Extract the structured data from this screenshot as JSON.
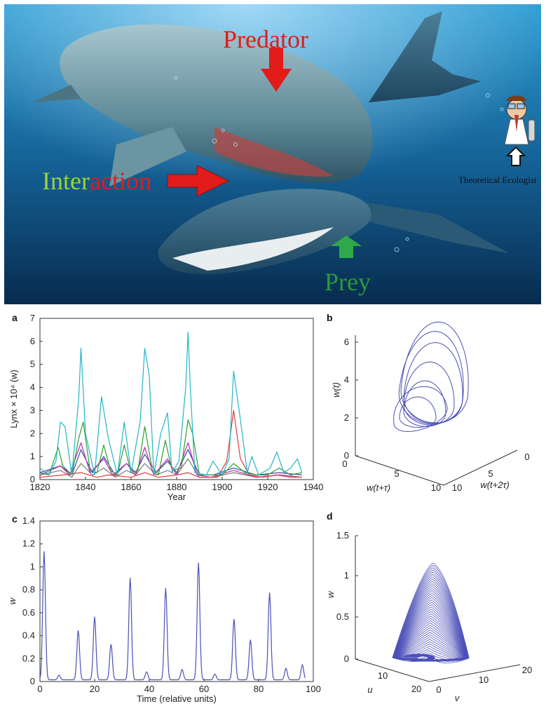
{
  "hero": {
    "label_predator": "Predator",
    "label_interaction_part1": "Inter",
    "label_interaction_part2": "action",
    "label_prey": "Prey",
    "label_theoretical_ecologist": "Theoretical Ecologist",
    "colors": {
      "water_top": "#1f8fc8",
      "water_bottom": "#0a3a66",
      "arrow_red": "#e21b1b",
      "arrow_green": "#2fa84a",
      "label_green": "#9ad33a"
    }
  },
  "chart_data": [
    {
      "panel": "a",
      "type": "line",
      "xlabel": "Year",
      "ylabel": "Lynx × 10⁴ (w)",
      "xlim": [
        1820,
        1940
      ],
      "ylim": [
        0,
        7
      ],
      "xticks": [
        1820,
        1840,
        1860,
        1880,
        1900,
        1920,
        1940
      ],
      "yticks": [
        0,
        1,
        2,
        3,
        4,
        5,
        6,
        7
      ],
      "series": [
        {
          "color": "#22b5c9",
          "x": [
            1820,
            1824,
            1827,
            1829,
            1831,
            1834,
            1837,
            1838,
            1840,
            1844,
            1847,
            1850,
            1854,
            1857,
            1860,
            1864,
            1866,
            1868,
            1870,
            1873,
            1876,
            1878,
            1881,
            1884,
            1885,
            1886,
            1888,
            1893,
            1896,
            1900,
            1903,
            1905,
            1908,
            1911,
            1913,
            1916,
            1921,
            1924,
            1927,
            1930,
            1933,
            1935
          ],
          "y": [
            0.5,
            0.2,
            0.8,
            2.5,
            2.3,
            0.2,
            3.5,
            5.7,
            2.0,
            0.2,
            3.6,
            1.8,
            0.2,
            2.5,
            0.3,
            2.5,
            5.7,
            4.5,
            0.2,
            2.0,
            2.9,
            0.3,
            0.8,
            4.0,
            6.4,
            4.0,
            0.3,
            0.2,
            0.8,
            0.2,
            0.9,
            4.7,
            2.6,
            0.3,
            1.0,
            0.2,
            0.5,
            1.2,
            0.3,
            0.5,
            0.9,
            0.3
          ]
        },
        {
          "color": "#2ca02c",
          "x": [
            1820,
            1824,
            1828,
            1830,
            1834,
            1837,
            1839,
            1842,
            1845,
            1848,
            1851,
            1854,
            1857,
            1860,
            1863,
            1866,
            1869,
            1872,
            1875,
            1878,
            1882,
            1885,
            1887,
            1890,
            1895,
            1900,
            1905,
            1910,
            1915,
            1920,
            1925,
            1930,
            1935
          ],
          "y": [
            0.3,
            0.2,
            1.4,
            0.6,
            0.2,
            1.8,
            2.5,
            0.4,
            0.3,
            1.5,
            0.4,
            0.2,
            1.5,
            0.3,
            0.4,
            2.3,
            0.6,
            0.2,
            1.7,
            0.4,
            0.5,
            2.6,
            2.0,
            0.2,
            0.2,
            0.2,
            0.7,
            0.3,
            0.2,
            0.2,
            0.5,
            0.2,
            0.3
          ]
        },
        {
          "color": "#e03a3a",
          "x": [
            1820,
            1830,
            1838,
            1845,
            1850,
            1860,
            1866,
            1872,
            1880,
            1885,
            1890,
            1898,
            1902,
            1905,
            1908,
            1912,
            1918,
            1924,
            1930,
            1935
          ],
          "y": [
            0.1,
            0.2,
            0.3,
            0.1,
            0.2,
            0.1,
            0.3,
            0.1,
            0.2,
            0.3,
            0.1,
            0.1,
            0.8,
            3.0,
            0.9,
            0.2,
            0.1,
            0.2,
            0.1,
            0.1
          ]
        },
        {
          "color": "#c02bb0",
          "x": [
            1820,
            1829,
            1833,
            1838,
            1842,
            1848,
            1852,
            1858,
            1862,
            1866,
            1870,
            1876,
            1880,
            1885,
            1889,
            1895,
            1905,
            1915,
            1925,
            1935
          ],
          "y": [
            0.2,
            0.6,
            0.2,
            1.6,
            0.3,
            0.9,
            0.2,
            0.7,
            0.2,
            1.4,
            0.2,
            0.9,
            0.2,
            1.6,
            0.2,
            0.1,
            0.4,
            0.1,
            0.2,
            0.1
          ]
        },
        {
          "color": "#3b4aa5",
          "x": [
            1820,
            1829,
            1834,
            1838,
            1843,
            1848,
            1853,
            1858,
            1862,
            1866,
            1871,
            1876,
            1880,
            1885,
            1890,
            1896,
            1905,
            1915,
            1925,
            1935
          ],
          "y": [
            0.3,
            0.6,
            0.2,
            1.3,
            0.3,
            1.0,
            0.2,
            0.7,
            0.3,
            1.1,
            0.3,
            0.8,
            0.3,
            1.3,
            0.2,
            0.2,
            0.5,
            0.2,
            0.3,
            0.2
          ]
        },
        {
          "color": "#7a7a7a",
          "x": [
            1820,
            1829,
            1834,
            1838,
            1843,
            1848,
            1853,
            1858,
            1862,
            1866,
            1871,
            1876,
            1880,
            1885,
            1890,
            1896,
            1905,
            1915,
            1925,
            1935
          ],
          "y": [
            0.2,
            0.4,
            0.1,
            0.7,
            0.2,
            0.5,
            0.1,
            0.4,
            0.2,
            0.7,
            0.2,
            0.4,
            0.2,
            0.9,
            0.1,
            0.1,
            0.3,
            0.1,
            0.2,
            0.1
          ]
        }
      ]
    },
    {
      "panel": "b",
      "type": "line",
      "xlabel": "w(t+τ)",
      "ylabel": "w(t)",
      "zlabel": "w(t+2τ)",
      "xticks": [
        0,
        5,
        10
      ],
      "yticks": [
        0,
        2,
        4,
        6
      ],
      "zticks": [
        0,
        5,
        10
      ],
      "color": "#4b50b8"
    },
    {
      "panel": "c",
      "type": "line",
      "xlabel": "Time (relative units)",
      "ylabel": "w",
      "xlim": [
        0,
        100
      ],
      "ylim": [
        0,
        1.4
      ],
      "xticks": [
        0,
        20,
        40,
        60,
        80,
        100
      ],
      "yticks": [
        0,
        0.2,
        0.4,
        0.6,
        0.8,
        1,
        1.2,
        1.4
      ],
      "color": "#4b50b8",
      "peaks": [
        {
          "t": 1.5,
          "w": 1.12
        },
        {
          "t": 7,
          "w": 0.04
        },
        {
          "t": 14,
          "w": 0.43
        },
        {
          "t": 20,
          "w": 0.55
        },
        {
          "t": 26,
          "w": 0.31
        },
        {
          "t": 33,
          "w": 0.89
        },
        {
          "t": 39,
          "w": 0.07
        },
        {
          "t": 46,
          "w": 0.8
        },
        {
          "t": 52,
          "w": 0.09
        },
        {
          "t": 58,
          "w": 1.02
        },
        {
          "t": 64,
          "w": 0.05
        },
        {
          "t": 71,
          "w": 0.53
        },
        {
          "t": 77,
          "w": 0.35
        },
        {
          "t": 84,
          "w": 0.76
        },
        {
          "t": 90,
          "w": 0.1
        },
        {
          "t": 96,
          "w": 0.13
        }
      ]
    },
    {
      "panel": "d",
      "type": "line",
      "xlabel": "u",
      "ylabel": "w",
      "zlabel": "v",
      "xticks": [
        20,
        10
      ],
      "yticks": [
        0,
        0.5,
        1,
        1.5
      ],
      "zticks": [
        0,
        10,
        20
      ],
      "color": "#4b50b8"
    }
  ],
  "panel_letters": {
    "a": "a",
    "b": "b",
    "c": "c",
    "d": "d"
  }
}
